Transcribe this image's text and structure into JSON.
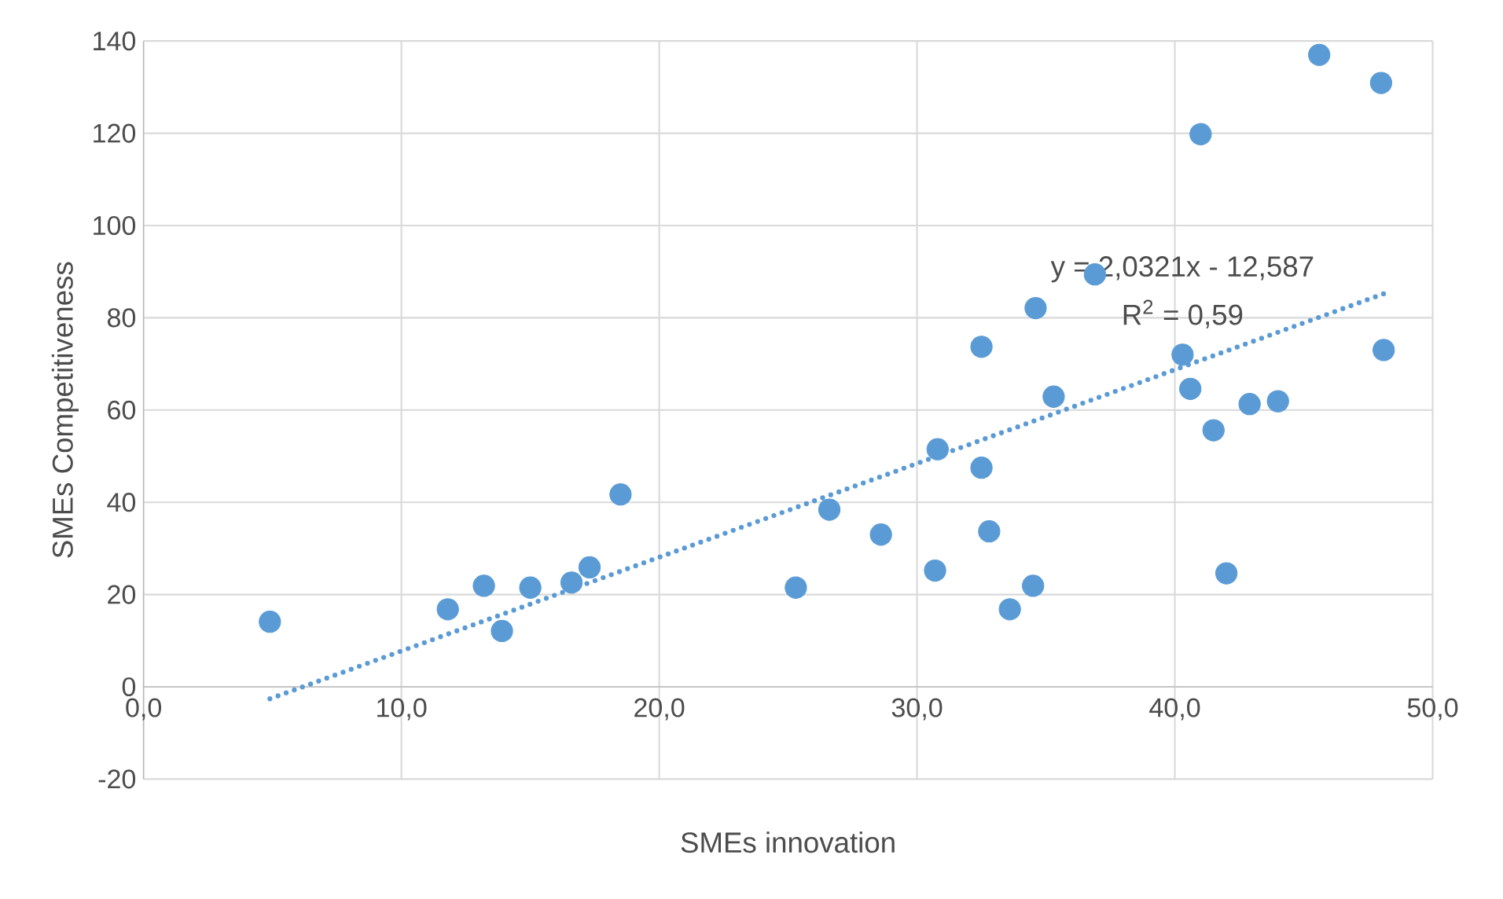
{
  "chart_data": {
    "type": "scatter",
    "xlabel": "SMEs innovation",
    "ylabel": "SMEs Competitiveness",
    "xlim": [
      0,
      50
    ],
    "ylim": [
      -20,
      140
    ],
    "xticks": [
      {
        "value": 0,
        "label": "0,0"
      },
      {
        "value": 10,
        "label": "10,0"
      },
      {
        "value": 20,
        "label": "20,0"
      },
      {
        "value": 30,
        "label": "30,0"
      },
      {
        "value": 40,
        "label": "40,0"
      },
      {
        "value": 50,
        "label": "50,0"
      }
    ],
    "yticks": [
      -20,
      0,
      20,
      40,
      60,
      80,
      100,
      120,
      140
    ],
    "grid": true,
    "series": [
      {
        "color": "#5b9bd5",
        "marker": "circle",
        "x": [
          4.9,
          11.8,
          13.2,
          13.9,
          15.0,
          16.6,
          17.3,
          18.5,
          25.3,
          26.6,
          28.6,
          30.7,
          30.8,
          32.5,
          32.5,
          32.8,
          33.6,
          34.5,
          34.6,
          35.3,
          36.9,
          40.3,
          40.6,
          41.5,
          41.0,
          42.0,
          42.9,
          44.0,
          45.6,
          48.0,
          48.1
        ],
        "values": [
          14.1,
          16.8,
          21.9,
          12.1,
          21.5,
          22.6,
          25.9,
          41.7,
          21.5,
          38.4,
          33.0,
          25.2,
          51.5,
          73.7,
          47.5,
          33.7,
          16.8,
          21.9,
          82.1,
          62.9,
          89.4,
          72.0,
          64.6,
          55.6,
          119.8,
          24.6,
          61.3,
          61.9,
          137.0,
          130.9,
          73.0
        ]
      },
      {
        "type": "line",
        "color": "#5b9bd5",
        "marker": "none",
        "line_style": "dotted",
        "x": [
          4.9,
          48.2
        ],
        "values": [
          -2.6,
          85.4
        ]
      }
    ],
    "annotations": [
      "y = 2,0321x - 12,587",
      "R$^{2}$ = 0,59"
    ]
  }
}
